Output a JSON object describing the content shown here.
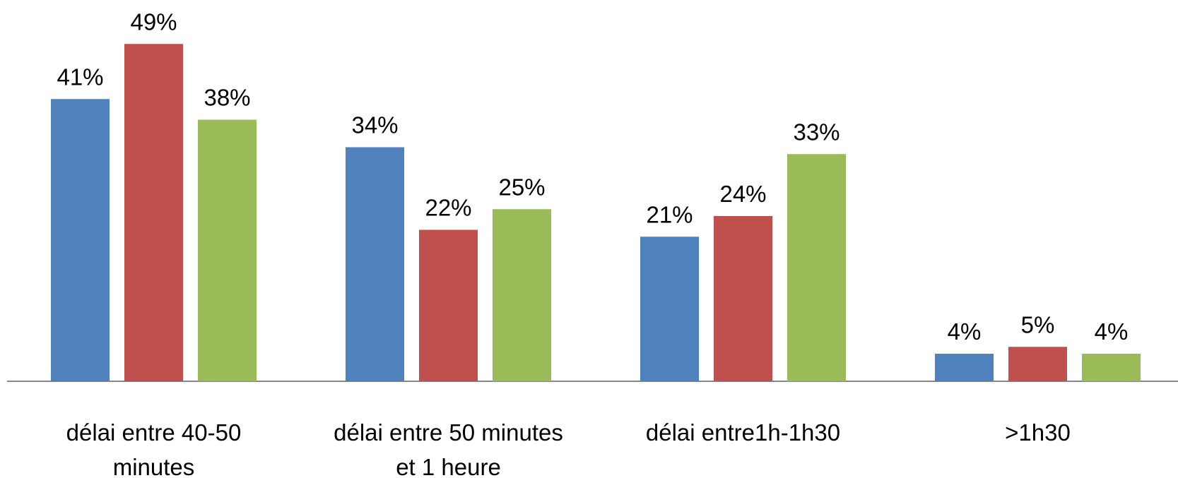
{
  "chart_data": {
    "type": "bar",
    "categories": [
      [
        "délai entre 40-50",
        "minutes"
      ],
      [
        "délai entre 50 minutes",
        "et 1 heure"
      ],
      [
        "délai entre1h-1h30"
      ],
      [
        ">1h30"
      ]
    ],
    "series": [
      {
        "values": [
          41,
          34,
          21,
          4
        ],
        "labels": [
          "41%",
          "34%",
          "21%",
          "4%"
        ],
        "color": "#4F81BD"
      },
      {
        "values": [
          49,
          22,
          24,
          5
        ],
        "labels": [
          "49%",
          "22%",
          "24%",
          "5%"
        ],
        "color": "#C0504D"
      },
      {
        "values": [
          38,
          25,
          33,
          4
        ],
        "labels": [
          "38%",
          "25%",
          "33%",
          "4%"
        ],
        "color": "#9BBB59"
      }
    ],
    "ylim": [
      0,
      60
    ],
    "grid": false,
    "legend": "none",
    "axis_color": "#868686"
  }
}
